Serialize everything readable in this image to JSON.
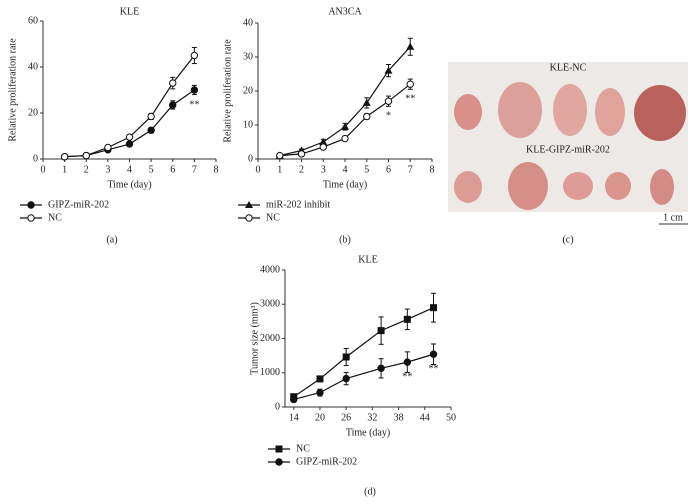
{
  "chart_data": [
    {
      "type": "line",
      "title": "KLE",
      "panel": "(a)",
      "x_label": "Time (day)",
      "y_label": "Relative proliferation rate",
      "x": [
        1,
        2,
        3,
        4,
        5,
        6,
        7
      ],
      "xlim": [
        0,
        8
      ],
      "xticks": [
        0,
        1,
        2,
        3,
        4,
        5,
        6,
        7,
        8
      ],
      "ylim": [
        0,
        60
      ],
      "yticks": [
        0,
        20,
        40,
        60
      ],
      "series": [
        {
          "name": "GIPZ-miR-202",
          "color": "#111",
          "marker": "circle",
          "values": [
            1,
            1.5,
            4,
            6.5,
            12.5,
            23.5,
            30
          ],
          "errors": [
            0.2,
            0.3,
            0.5,
            0.8,
            1.2,
            1.8,
            2
          ]
        },
        {
          "name": "NC",
          "color": "#111",
          "marker": "open-circle",
          "values": [
            1,
            1.5,
            5,
            9.5,
            18.5,
            33,
            45
          ],
          "errors": [
            0.2,
            0.3,
            0.6,
            0.8,
            1.3,
            2.5,
            3.5
          ]
        }
      ],
      "annotations": [
        {
          "text": "**",
          "x": 7
        }
      ],
      "legend": "below"
    },
    {
      "type": "line",
      "title": "AN3CA",
      "panel": "(b)",
      "x_label": "Time (day)",
      "y_label": "Relative proliferation rate",
      "x": [
        1,
        2,
        3,
        4,
        5,
        6,
        7
      ],
      "xlim": [
        0,
        8
      ],
      "xticks": [
        0,
        1,
        2,
        3,
        4,
        5,
        6,
        7,
        8
      ],
      "ylim": [
        0,
        40
      ],
      "yticks": [
        0,
        10,
        20,
        30,
        40
      ],
      "series": [
        {
          "name": "miR-202 inhibit",
          "color": "#111",
          "marker": "triangle",
          "values": [
            1,
            2.5,
            5,
            9.5,
            16.5,
            26,
            33
          ],
          "errors": [
            0.2,
            0.4,
            0.8,
            1,
            1.5,
            1.8,
            2.5
          ]
        },
        {
          "name": "NC",
          "color": "#111",
          "marker": "open-circle",
          "values": [
            1,
            1.5,
            3.5,
            6,
            12.5,
            17,
            22
          ],
          "errors": [
            0.2,
            0.3,
            0.4,
            0.5,
            0.8,
            1.5,
            1.5
          ]
        }
      ],
      "annotations": [
        {
          "text": "*",
          "x": 6
        },
        {
          "text": "**",
          "x": 7
        }
      ],
      "legend": "below"
    },
    {
      "type": "line",
      "title": "KLE",
      "panel": "(d)",
      "x_label": "Time (day)",
      "y_label": "Tumor size (mm³)",
      "x": [
        14,
        20,
        26,
        34,
        40,
        46
      ],
      "xlim": [
        12,
        50
      ],
      "xticks": [
        14,
        20,
        26,
        32,
        38,
        44,
        50
      ],
      "ylim": [
        0,
        4000
      ],
      "yticks": [
        0,
        1000,
        2000,
        3000,
        4000
      ],
      "series": [
        {
          "name": "NC",
          "color": "#111",
          "marker": "square",
          "values": [
            300,
            820,
            1460,
            2230,
            2560,
            2900
          ],
          "errors": [
            50,
            80,
            250,
            400,
            300,
            420
          ]
        },
        {
          "name": "GIPZ-miR-202",
          "color": "#111",
          "marker": "circle",
          "values": [
            220,
            420,
            830,
            1130,
            1310,
            1540
          ],
          "errors": [
            50,
            100,
            180,
            280,
            300,
            300
          ]
        }
      ],
      "annotations": [
        {
          "text": "**",
          "x": 40
        },
        {
          "text": "**",
          "x": 46
        }
      ],
      "legend": "below"
    }
  ],
  "photo": {
    "labels": [
      "KLE-NC",
      "KLE-GIPZ-miR-202"
    ],
    "scale_bar": "1 cm",
    "panel": "(c)"
  }
}
